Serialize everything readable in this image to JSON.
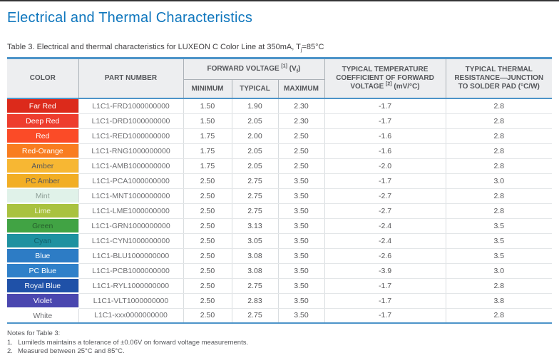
{
  "page": {
    "title": "Electrical and Thermal Characteristics",
    "caption": {
      "prefix": "Table 3. Electrical and thermal characteristics for LUXEON C Color Line at 350mA, T",
      "subscript": "j",
      "suffix": "=85°C"
    }
  },
  "accent_colors": {
    "title_blue": "#0e76bd",
    "table_rule_blue": "#4d94c9",
    "header_bg": "#edeef0",
    "header_text": "#54565a"
  },
  "table": {
    "headers": {
      "color": "COLOR",
      "part_number": "PART NUMBER",
      "fv_label": "FORWARD VOLTAGE",
      "fv_note_ref": "[1]",
      "fv_symbol_open": "(V",
      "fv_symbol_sub": "f",
      "fv_symbol_close": ")",
      "min": "MINIMUM",
      "typical": "TYPICAL",
      "max": "MAXIMUM",
      "temp_coeff_label": "TYPICAL TEMPERATURE COEFFICIENT OF FORWARD VOLTAGE",
      "temp_coeff_note_ref": "[2]",
      "temp_coeff_unit": "(mV/°C)",
      "thermal_resistance": "TYPICAL THERMAL RESISTANCE—JUNCTION TO SOLDER PAD (°C/W)"
    },
    "rows": [
      {
        "color": "Far Red",
        "part": "L1C1-FRD1000000000",
        "min": "1.50",
        "typ": "1.90",
        "max": "2.30",
        "coeff": "-1.7",
        "rth": "2.8",
        "bg": "#dc2a1b",
        "fg": "#ffffff"
      },
      {
        "color": "Deep Red",
        "part": "L1C1-DRD1000000000",
        "min": "1.50",
        "typ": "2.05",
        "max": "2.30",
        "coeff": "-1.7",
        "rth": "2.8",
        "bg": "#ee3d2e",
        "fg": "#ffffff"
      },
      {
        "color": "Red",
        "part": "L1C1-RED1000000000",
        "min": "1.75",
        "typ": "2.00",
        "max": "2.50",
        "coeff": "-1.6",
        "rth": "2.8",
        "bg": "#fb4b27",
        "fg": "#ffffff"
      },
      {
        "color": "Red-Orange",
        "part": "L1C1-RNG1000000000",
        "min": "1.75",
        "typ": "2.05",
        "max": "2.50",
        "coeff": "-1.6",
        "rth": "2.8",
        "bg": "#f97d20",
        "fg": "#ffffff"
      },
      {
        "color": "Amber",
        "part": "L1C1-AMB1000000000",
        "min": "1.75",
        "typ": "2.05",
        "max": "2.50",
        "coeff": "-2.0",
        "rth": "2.8",
        "bg": "#f7b733",
        "fg": "#58585a"
      },
      {
        "color": "PC Amber",
        "part": "L1C1-PCA1000000000",
        "min": "2.50",
        "typ": "2.75",
        "max": "3.50",
        "coeff": "-1.7",
        "rth": "3.0",
        "bg": "#f2ae24",
        "fg": "#58585a"
      },
      {
        "color": "Mint",
        "part": "L1C1-MNT1000000000",
        "min": "2.50",
        "typ": "2.75",
        "max": "3.50",
        "coeff": "-2.7",
        "rth": "2.8",
        "bg": "#e0f2e9",
        "fg": "#8d9e96"
      },
      {
        "color": "Lime",
        "part": "L1C1-LME1000000000",
        "min": "2.50",
        "typ": "2.75",
        "max": "3.50",
        "coeff": "-2.7",
        "rth": "2.8",
        "bg": "#a9c23f",
        "fg": "#f2f5dc"
      },
      {
        "color": "Green",
        "part": "L1C1-GRN1000000000",
        "min": "2.50",
        "typ": "3.13",
        "max": "3.50",
        "coeff": "-2.4",
        "rth": "3.5",
        "bg": "#41a344",
        "fg": "#265f2c"
      },
      {
        "color": "Cyan",
        "part": "L1C1-CYN1000000000",
        "min": "2.50",
        "typ": "3.05",
        "max": "3.50",
        "coeff": "-2.4",
        "rth": "3.5",
        "bg": "#1e91a0",
        "fg": "#115e69"
      },
      {
        "color": "Blue",
        "part": "L1C1-BLU1000000000",
        "min": "2.50",
        "typ": "3.08",
        "max": "3.50",
        "coeff": "-2.6",
        "rth": "3.5",
        "bg": "#2d7cc5",
        "fg": "#ffffff"
      },
      {
        "color": "PC Blue",
        "part": "L1C1-PCB1000000000",
        "min": "2.50",
        "typ": "3.08",
        "max": "3.50",
        "coeff": "-3.9",
        "rth": "3.0",
        "bg": "#2f80c9",
        "fg": "#ffffff"
      },
      {
        "color": "Royal Blue",
        "part": "L1C1-RYL1000000000",
        "min": "2.50",
        "typ": "2.75",
        "max": "3.50",
        "coeff": "-1.7",
        "rth": "2.8",
        "bg": "#1f51a8",
        "fg": "#ffffff"
      },
      {
        "color": "Violet",
        "part": "L1C1-VLT1000000000",
        "min": "2.50",
        "typ": "2.83",
        "max": "3.50",
        "coeff": "-1.7",
        "rth": "3.8",
        "bg": "#4a47af",
        "fg": "#ffffff"
      },
      {
        "color": "White",
        "part": "L1C1-xxx0000000000",
        "min": "2.50",
        "typ": "2.75",
        "max": "3.50",
        "coeff": "-1.7",
        "rth": "2.8",
        "bg": "#ffffff",
        "fg": "#6d6e71"
      }
    ]
  },
  "notes": {
    "title": "Notes for Table 3:",
    "items": [
      {
        "num": "1.",
        "text": "Lumileds maintains a tolerance of ±0.06V on forward voltage measurements."
      },
      {
        "num": "2.",
        "text": "Measured between 25°C and 85°C."
      }
    ]
  }
}
